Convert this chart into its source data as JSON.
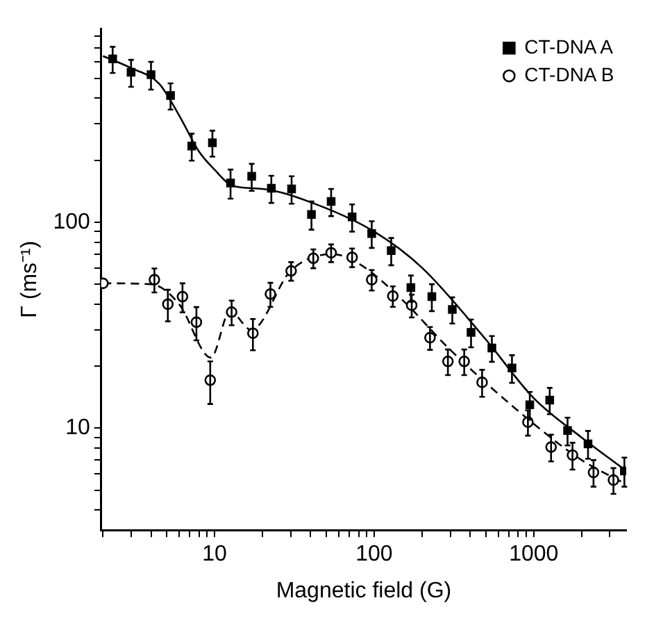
{
  "chart_data": {
    "type": "scatter",
    "xlabel": "Magnetic field (G)",
    "ylabel": "Γ (ms⁻¹)",
    "log": "xy",
    "grid": false,
    "legend": "top right",
    "xlim": [
      1.95,
      3800
    ],
    "ylim": [
      3.2,
      870
    ],
    "xticks": [
      {
        "value": 2,
        "label": null
      },
      {
        "value": 3,
        "label": null
      },
      {
        "value": 4,
        "label": null
      },
      {
        "value": 5,
        "label": null
      },
      {
        "value": 6,
        "label": null
      },
      {
        "value": 7,
        "label": null
      },
      {
        "value": 8,
        "label": null
      },
      {
        "value": 9,
        "label": null
      },
      10,
      {
        "value": 20,
        "label": null
      },
      {
        "value": 30,
        "label": null
      },
      {
        "value": 40,
        "label": null
      },
      {
        "value": 50,
        "label": null
      },
      {
        "value": 60,
        "label": null
      },
      {
        "value": 70,
        "label": null
      },
      {
        "value": 80,
        "label": null
      },
      {
        "value": 90,
        "label": null
      },
      100,
      {
        "value": 200,
        "label": null
      },
      {
        "value": 300,
        "label": null
      },
      {
        "value": 400,
        "label": null
      },
      {
        "value": 500,
        "label": null
      },
      {
        "value": 600,
        "label": null
      },
      {
        "value": 700,
        "label": null
      },
      {
        "value": 800,
        "label": null
      },
      {
        "value": 900,
        "label": null
      },
      1000,
      {
        "value": 2000,
        "label": null
      },
      {
        "value": 3000,
        "label": null
      }
    ],
    "yticks": [
      {
        "value": 4,
        "label": null
      },
      {
        "value": 5,
        "label": null
      },
      {
        "value": 6,
        "label": null
      },
      {
        "value": 7,
        "label": null
      },
      {
        "value": 8,
        "label": null
      },
      {
        "value": 9,
        "label": null
      },
      10,
      {
        "value": 20,
        "label": null
      },
      {
        "value": 30,
        "label": null
      },
      {
        "value": 40,
        "label": null
      },
      {
        "value": 50,
        "label": null
      },
      {
        "value": 60,
        "label": null
      },
      {
        "value": 70,
        "label": null
      },
      {
        "value": 80,
        "label": null
      },
      {
        "value": 90,
        "label": null
      },
      100,
      {
        "value": 200,
        "label": null
      },
      {
        "value": 300,
        "label": null
      },
      {
        "value": 400,
        "label": null
      },
      {
        "value": 500,
        "label": null
      },
      {
        "value": 600,
        "label": null
      },
      {
        "value": 700,
        "label": null
      },
      {
        "value": 800,
        "label": null
      }
    ],
    "series": [
      {
        "name": "CT-DNA A",
        "type": "scatter",
        "marker": "square",
        "color": "#000000",
        "x": [
          2.3,
          3.0,
          4.0,
          5.3,
          7.2,
          9.7,
          12.6,
          17.1,
          22.7,
          30.4,
          40.5,
          53.8,
          72.8,
          96.6,
          128,
          170,
          230,
          309,
          405,
          547,
          731,
          945,
          1260,
          1630,
          2190,
          3700
        ],
        "values": [
          620,
          534,
          520,
          412,
          234,
          243,
          155,
          167,
          146,
          145,
          109,
          126,
          106,
          88,
          72.8,
          48.1,
          43.5,
          37.7,
          29.2,
          24.5,
          19.6,
          13.0,
          13.7,
          9.75,
          8.4,
          6.2
        ],
        "errors": [
          90,
          80,
          80,
          60,
          35,
          35,
          25,
          25,
          22,
          22,
          17,
          19,
          16,
          13,
          11,
          7,
          6.5,
          5.5,
          4.5,
          3.5,
          3,
          2,
          2,
          1.5,
          1.3,
          1
        ]
      },
      {
        "name": "CT-DNA B",
        "type": "scatter",
        "marker": "circle",
        "color": "#000000",
        "x": [
          2.0,
          4.2,
          5.1,
          6.3,
          7.7,
          9.4,
          12.8,
          17.4,
          22.4,
          30.2,
          41.6,
          53.8,
          72.8,
          96.6,
          131,
          172,
          224,
          290,
          367,
          475,
          920,
          1285,
          1750,
          2370,
          3160
        ],
        "values": [
          50.5,
          52.6,
          40,
          43.5,
          32.7,
          17.1,
          36.6,
          28.9,
          44.8,
          58,
          66.8,
          71,
          67.5,
          52.6,
          43.8,
          39.5,
          27.5,
          21.1,
          21.1,
          16.7,
          10.7,
          8.1,
          7.4,
          6.1,
          5.6
        ],
        "errors": [
          null,
          7,
          7,
          7,
          6,
          4,
          5,
          5,
          6,
          6,
          7,
          7,
          7,
          6,
          5,
          5,
          3.5,
          3,
          3,
          2.5,
          1.5,
          1.2,
          1.1,
          0.9,
          0.8
        ]
      },
      {
        "type": "line",
        "marker": "none",
        "line_style": "solid",
        "color": "#000000",
        "x": [
          2,
          3,
          4.5,
          6,
          8,
          10,
          13,
          20,
          40,
          100,
          200,
          500,
          1000,
          2000,
          3700
        ],
        "values": [
          640,
          560,
          470,
          330,
          220,
          180,
          150,
          145,
          125,
          90,
          60,
          27,
          14,
          9,
          6.3
        ]
      },
      {
        "type": "line",
        "marker": "none",
        "line_style": "dashed",
        "color": "#000000",
        "x": [
          2,
          4,
          6,
          9.5,
          12.5,
          17,
          30,
          55,
          80,
          150,
          300,
          1000,
          2000,
          3700
        ],
        "values": [
          50.5,
          50,
          40,
          22,
          37,
          30,
          58,
          70,
          63,
          42,
          24,
          10.5,
          7,
          5.4
        ]
      }
    ]
  }
}
